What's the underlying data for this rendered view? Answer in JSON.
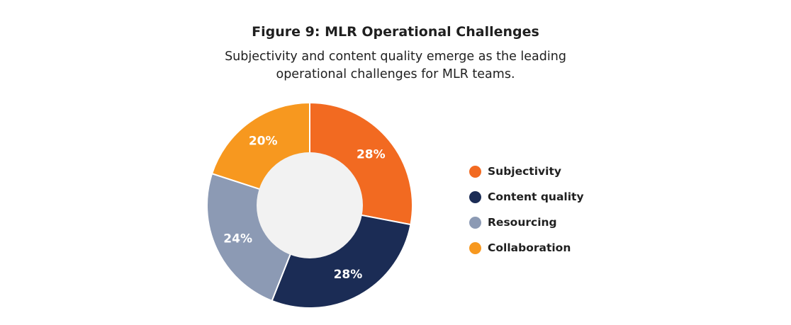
{
  "title": "Figure 9: MLR Operational Challenges",
  "subtitle_lines": [
    "Subjectivity and content quality emerge as the leading",
    "operational challenges for MLR teams."
  ],
  "colors": {
    "hole": "#f2f2f2",
    "slice_border": "#ffffff"
  },
  "chart_data": {
    "type": "pie",
    "variant": "donut",
    "title": "Figure 9: MLR Operational Challenges",
    "subtitle": "Subjectivity and content quality emerge as the leading operational challenges for MLR teams.",
    "legend_position": "right",
    "start": "top, clockwise",
    "slices": [
      {
        "label": "Subjectivity",
        "value": 28,
        "display": "28%",
        "color": "#f26a21"
      },
      {
        "label": "Content quality",
        "value": 28,
        "display": "28%",
        "color": "#1b2c55"
      },
      {
        "label": "Resourcing",
        "value": 24,
        "display": "24%",
        "color": "#8c9ab4"
      },
      {
        "label": "Collaboration",
        "value": 20,
        "display": "20%",
        "color": "#f7981f"
      }
    ]
  }
}
